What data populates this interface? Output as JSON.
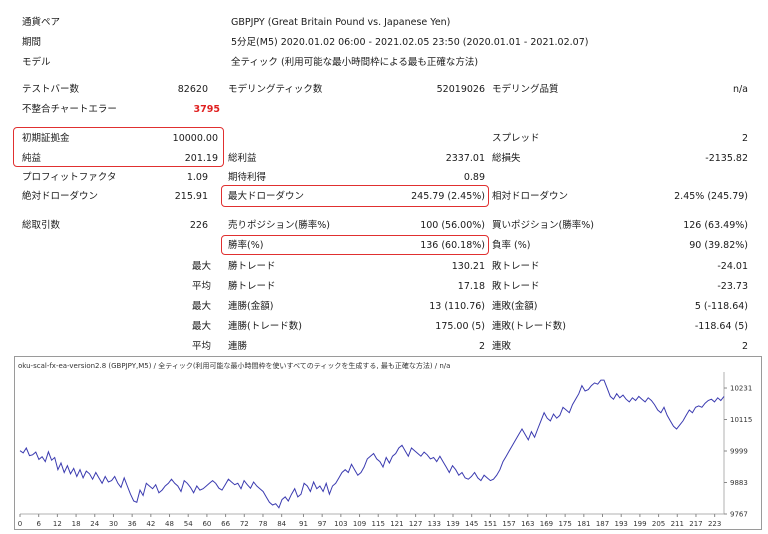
{
  "report": {
    "header": [
      {
        "label": "通貨ペア",
        "value": "GBPJPY (Great Britain Pound vs. Japanese Yen)"
      },
      {
        "label": "期間",
        "value": "5分足(M5) 2020.01.02 06:00 - 2021.02.05 23:50 (2020.01.01 - 2021.02.07)"
      },
      {
        "label": "モデル",
        "value": "全ティック (利用可能な最小時間枠による最も正確な方法)"
      }
    ],
    "bars_label": "テストバー数",
    "bars_value": "82620",
    "ticks_label": "モデリングティック数",
    "ticks_value": "52019026",
    "quality_label": "モデリング品質",
    "quality_value": "n/a",
    "mismatch_label": "不整合チャートエラー",
    "mismatch_value": "3795",
    "deposit_label": "初期証拠金",
    "deposit_value": "10000.00",
    "spread_label": "スプレッド",
    "spread_value": "2",
    "net_label": "純益",
    "net_value": "201.19",
    "gross_profit_label": "総利益",
    "gross_profit_value": "2337.01",
    "gross_loss_label": "総損失",
    "gross_loss_value": "-2135.82",
    "pf_label": "プロフィットファクタ",
    "pf_value": "1.09",
    "payoff_label": "期待利得",
    "payoff_value": "0.89",
    "abs_dd_label": "絶対ドローダウン",
    "abs_dd_value": "215.91",
    "max_dd_label": "最大ドローダウン",
    "max_dd_value": "245.79 (2.45%)",
    "rel_dd_label": "相対ドローダウン",
    "rel_dd_value": "2.45% (245.79)",
    "total_trades_label": "総取引数",
    "total_trades_value": "226",
    "short_label": "売りポジション(勝率%)",
    "short_value": "100 (56.00%)",
    "long_label": "買いポジション(勝率%)",
    "long_value": "126 (63.49%)",
    "win_rate_label": "勝率(%)",
    "win_rate_value": "136 (60.18%)",
    "loss_rate_label": "負率 (%)",
    "loss_rate_value": "90 (39.82%)",
    "max_label": "最大",
    "avg_label": "平均",
    "max_win_label": "勝トレード",
    "max_win_value": "130.21",
    "max_loss_label": "敗トレード",
    "max_loss_value": "-24.01",
    "avg_win_label": "勝トレード",
    "avg_win_value": "17.18",
    "avg_loss_label": "敗トレード",
    "avg_loss_value": "-23.73",
    "cons_wins_amt_label": "連勝(金額)",
    "cons_wins_amt_value": "13 (110.76)",
    "cons_loss_amt_label": "連敗(金額)",
    "cons_loss_amt_value": "5 (-118.64)",
    "cons_wins_cnt_label": "連勝(トレード数)",
    "cons_wins_cnt_value": "175.00 (5)",
    "cons_loss_cnt_label": "連敗(トレード数)",
    "cons_loss_cnt_value": "-118.64 (5)",
    "avg_cons_win_label": "連勝",
    "avg_cons_win_value": "2",
    "avg_cons_loss_label": "連敗",
    "avg_cons_loss_value": "2"
  },
  "colors": {
    "highlight": "#e03030",
    "line": "#3b3bb0",
    "error_text": "#e02020"
  },
  "chart_data": {
    "type": "line",
    "title": "oku-scal-fx-ea-version2.8 (GBPJPY,M5) / 全ティック(利用可能な最小時間枠を使いすべてのティックを生成する, 最も正確な方法) / n/a",
    "x_ticks": [
      "0",
      "6",
      "12",
      "18",
      "24",
      "30",
      "36",
      "42",
      "48",
      "54",
      "60",
      "66",
      "72",
      "78",
      "84",
      "91",
      "97",
      "103",
      "109",
      "115",
      "121",
      "127",
      "133",
      "139",
      "145",
      "151",
      "157",
      "163",
      "169",
      "175",
      "181",
      "187",
      "193",
      "199",
      "205",
      "211",
      "217",
      "223"
    ],
    "y_ticks": [
      "10231",
      "10115",
      "9999",
      "9883",
      "9767"
    ],
    "xlim": [
      0,
      226
    ],
    "ylim": [
      9767,
      10290
    ],
    "series": [
      {
        "values": [
          10000,
          9992,
          10010,
          9982,
          9985,
          9995,
          9968,
          9978,
          9960,
          9996,
          9965,
          9975,
          9930,
          9955,
          9920,
          9945,
          9915,
          9935,
          9905,
          9930,
          9900,
          9925,
          9915,
          9895,
          9920,
          9900,
          9880,
          9905,
          9885,
          9890,
          9905,
          9880,
          9865,
          9900,
          9870,
          9840,
          9815,
          9810,
          9855,
          9835,
          9880,
          9870,
          9860,
          9875,
          9845,
          9855,
          9870,
          9880,
          9895,
          9880,
          9870,
          9850,
          9890,
          9880,
          9865,
          9845,
          9870,
          9855,
          9860,
          9870,
          9880,
          9890,
          9880,
          9862,
          9855,
          9875,
          9895,
          9885,
          9875,
          9880,
          9860,
          9890,
          9875,
          9862,
          9885,
          9870,
          9860,
          9850,
          9830,
          9810,
          9800,
          9805,
          9790,
          9820,
          9830,
          9815,
          9840,
          9860,
          9830,
          9840,
          9880,
          9870,
          9850,
          9885,
          9860,
          9870,
          9850,
          9880,
          9840,
          9870,
          9880,
          9900,
          9920,
          9930,
          9920,
          9950,
          9930,
          9910,
          9920,
          9940,
          9970,
          9980,
          9990,
          9970,
          9960,
          9940,
          9975,
          9955,
          9980,
          9990,
          10010,
          10020,
          10000,
          9980,
          10010,
          10000,
          9990,
          9980,
          9995,
          9985,
          9970,
          9975,
          9960,
          9980,
          9960,
          9940,
          9920,
          9945,
          9930,
          9910,
          9920,
          9900,
          9895,
          9905,
          9920,
          9900,
          9890,
          9910,
          9900,
          9890,
          9895,
          9910,
          9930,
          9960,
          9980,
          10000,
          10020,
          10040,
          10060,
          10080,
          10060,
          10040,
          10070,
          10050,
          10080,
          10110,
          10140,
          10120,
          10110,
          10135,
          10120,
          10130,
          10160,
          10150,
          10140,
          10170,
          10190,
          10210,
          10240,
          10220,
          10225,
          10240,
          10250,
          10245,
          10260,
          10260,
          10230,
          10200,
          10190,
          10210,
          10195,
          10205,
          10190,
          10180,
          10195,
          10185,
          10200,
          10190,
          10180,
          10195,
          10185,
          10170,
          10150,
          10140,
          10160,
          10130,
          10110,
          10090,
          10080,
          10095,
          10110,
          10130,
          10150,
          10140,
          10160,
          10165,
          10160,
          10175,
          10185,
          10190,
          10180,
          10195,
          10185,
          10200
        ]
      }
    ]
  }
}
